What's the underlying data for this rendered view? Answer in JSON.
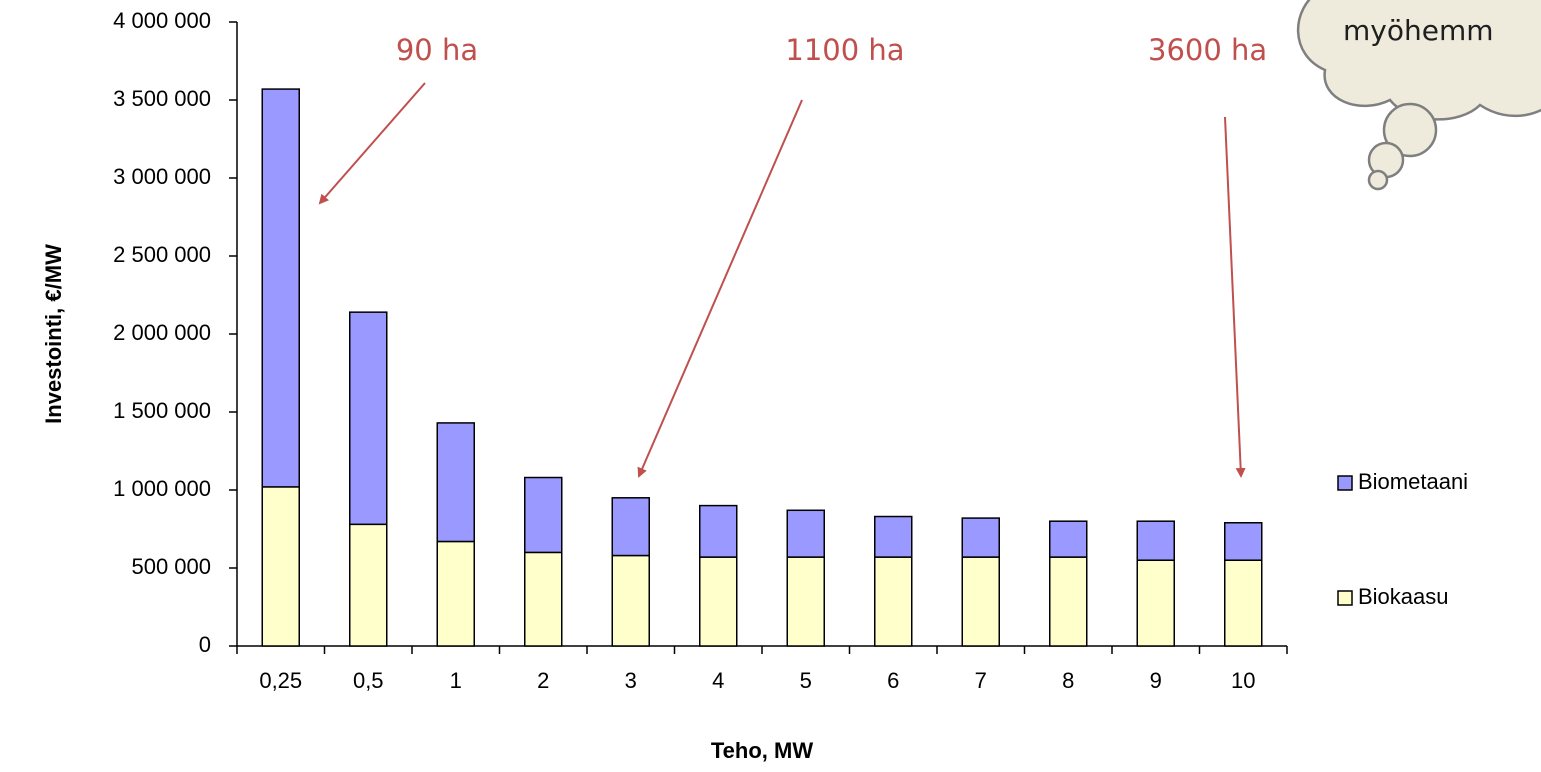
{
  "chart_data": {
    "type": "stacked-bar",
    "x_label": "Teho, MW",
    "y_label": "Investointi, €/MW",
    "categories": [
      "0,25",
      "0,5",
      "1",
      "2",
      "3",
      "4",
      "5",
      "6",
      "7",
      "8",
      "9",
      "10"
    ],
    "series": [
      {
        "name": "Biokaasu",
        "color": "#ffffcc",
        "values": [
          1020000,
          780000,
          670000,
          600000,
          580000,
          570000,
          570000,
          570000,
          570000,
          570000,
          550000,
          550000
        ]
      },
      {
        "name": "Biometaani",
        "color": "#9999ff",
        "values": [
          2550000,
          1360000,
          760000,
          480000,
          370000,
          330000,
          300000,
          260000,
          250000,
          230000,
          250000,
          240000
        ]
      }
    ],
    "ylim": [
      0,
      4000000
    ],
    "yticks": [
      0,
      {
        "value": 500000,
        "label": "500 000"
      },
      {
        "value": 1000000,
        "label": "1 000 000"
      },
      {
        "value": 1500000,
        "label": "1 500 000"
      },
      {
        "value": 2000000,
        "label": "2 000 000"
      },
      {
        "value": 2500000,
        "label": "2 500 000"
      },
      {
        "value": 3000000,
        "label": "3 000 000"
      },
      {
        "value": 3500000,
        "label": "3 500 000"
      },
      {
        "value": 4000000,
        "label": "4 000 000"
      }
    ],
    "grid": false,
    "legend": "right",
    "annotations": [
      "90 ha",
      "1100 ha",
      "3600 ha",
      "myöhemm"
    ]
  }
}
